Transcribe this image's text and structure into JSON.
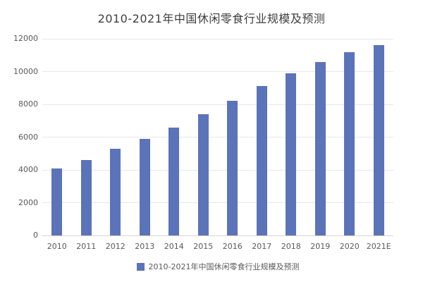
{
  "title": "2010-2021年中国休闲零食行业规模及预测",
  "colors": {
    "bar": "#5B73B8",
    "title_text": "#3D3D3D",
    "axis_text": "#595959",
    "gridline": "#E8E8E8",
    "axis_line": "#D6D6D6",
    "background": "#FFFFFF"
  },
  "legend": {
    "label": "2010-2021年中国休闲零食行业规模及预测"
  },
  "chart_data": {
    "type": "bar",
    "title": "2010-2021年中国休闲零食行业规模及预测",
    "categories": [
      "2010",
      "2011",
      "2012",
      "2013",
      "2014",
      "2015",
      "2016",
      "2017",
      "2018",
      "2019",
      "2020",
      "2021E"
    ],
    "values": [
      4100,
      4600,
      5300,
      5900,
      6600,
      7400,
      8200,
      9100,
      9900,
      10600,
      11200,
      11600
    ],
    "series_name": "2010-2021年中国休闲零食行业规模及预测",
    "xlabel": "",
    "ylabel": "",
    "ylim": [
      0,
      12000
    ],
    "ytick_step": 2000,
    "yticks": [
      0,
      2000,
      4000,
      6000,
      8000,
      10000,
      12000
    ],
    "grid": true,
    "legend_position": "bottom"
  }
}
